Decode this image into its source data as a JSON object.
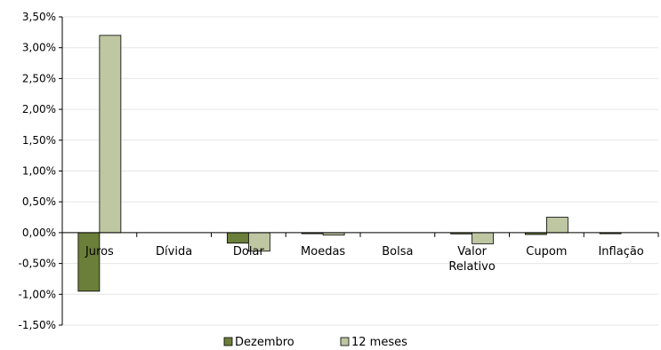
{
  "chart_data": {
    "type": "bar",
    "categories": [
      "Juros",
      "Dívida",
      "Dolar",
      "Moedas",
      "Bolsa",
      "Valor Relativo",
      "Cupom",
      "Inflação"
    ],
    "category_lines": [
      [
        "Juros"
      ],
      [
        "Dívida"
      ],
      [
        "Dolar"
      ],
      [
        "Moedas"
      ],
      [
        "Bolsa"
      ],
      [
        "Valor",
        "Relativo"
      ],
      [
        "Cupom"
      ],
      [
        "Inflação"
      ]
    ],
    "series": [
      {
        "name": "Dezembro",
        "color": "#6b7f3a",
        "values": [
          -0.95,
          0,
          -0.17,
          -0.01,
          0,
          -0.02,
          -0.03,
          -0.01
        ]
      },
      {
        "name": "12 meses",
        "color": "#bec6a2",
        "values": [
          3.2,
          0,
          -0.3,
          -0.04,
          0,
          -0.18,
          0.25,
          0
        ]
      }
    ],
    "ylim": [
      -1.5,
      3.5
    ],
    "yticks": [
      3.5,
      3.0,
      2.5,
      2.0,
      1.5,
      1.0,
      0.5,
      0.0,
      -0.5,
      -1.0,
      -1.5
    ],
    "ytick_labels": [
      "3,50%",
      "3,00%",
      "2,50%",
      "2,00%",
      "1,50%",
      "1,00%",
      "0,50%",
      "0,00%",
      "-0,50%",
      "-1,00%",
      "-1,50%"
    ],
    "grid": true,
    "legend": "bottom"
  }
}
